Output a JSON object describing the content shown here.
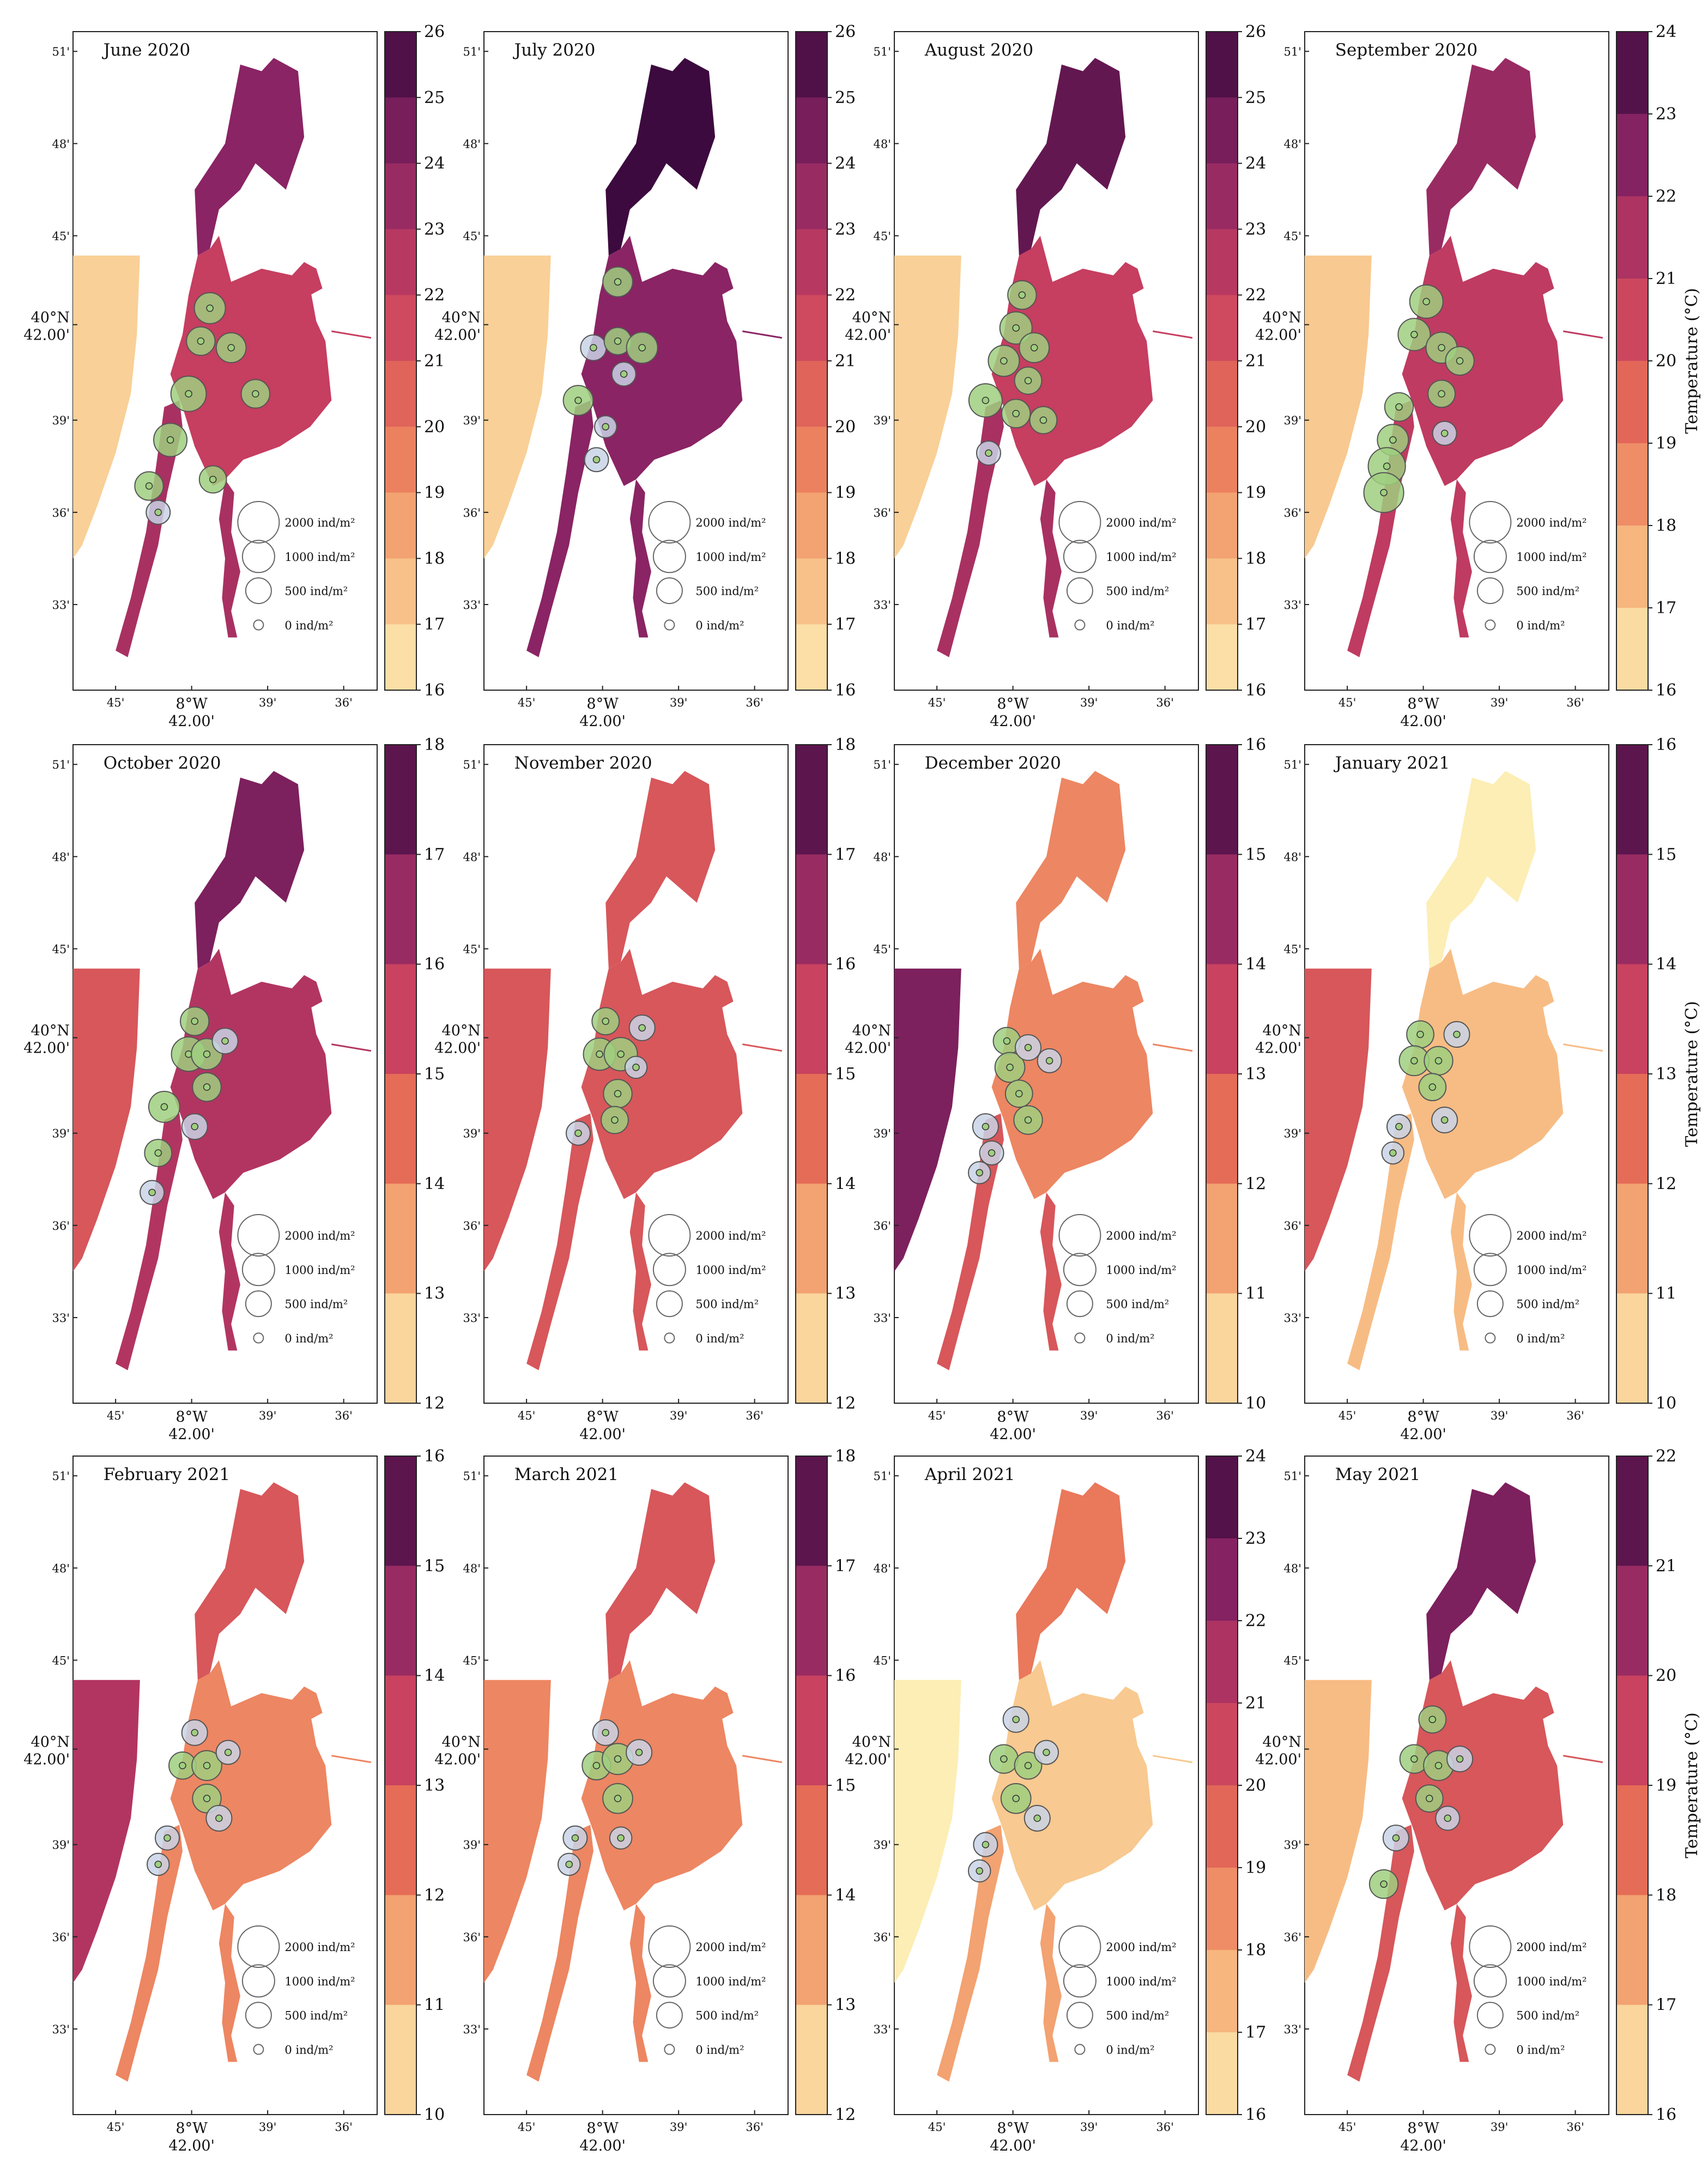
{
  "figure": {
    "colorbar_label": "Temperature (°C)",
    "axes": {
      "lat_ticks": [
        "51'",
        "48'",
        "45'",
        "42.00'",
        "39'",
        "36'",
        "33'"
      ],
      "lat_major_prefix": "40°N",
      "lon_ticks": [
        "45'",
        "8°W",
        "39'",
        "36'"
      ],
      "lon_major_sub": "42.00'"
    },
    "legend": [
      "2000 ind/m²",
      "1000 ind/m²",
      "500 ind/m²",
      "0 ind/m²"
    ],
    "legend_values": [
      2000,
      1000,
      500,
      0
    ],
    "land_color": "#ffffff",
    "sample_fill_colors": {
      "low": "#c9d3e6",
      "high": "#9fcf7f"
    }
  },
  "panels": [
    {
      "title": "June 2020",
      "colorbar": {
        "min": 16,
        "max": 26,
        "ticks": [
          26,
          25,
          24,
          23,
          22,
          21,
          20,
          19,
          18,
          17,
          16
        ]
      },
      "temp": {
        "north": 24,
        "lagoon": 22,
        "channel": 23,
        "sea": 17
      },
      "samples": [
        [
          0.45,
          0.42,
          900
        ],
        [
          0.42,
          0.47,
          700
        ],
        [
          0.38,
          0.55,
          1300
        ],
        [
          0.32,
          0.62,
          1100
        ],
        [
          0.52,
          0.48,
          800
        ],
        [
          0.6,
          0.55,
          700
        ],
        [
          0.46,
          0.68,
          600
        ],
        [
          0.25,
          0.69,
          700
        ],
        [
          0.28,
          0.73,
          400
        ]
      ]
    },
    {
      "title": "July 2020",
      "colorbar": {
        "min": 16,
        "max": 26,
        "ticks": [
          26,
          25,
          24,
          23,
          22,
          21,
          20,
          19,
          18,
          17,
          16
        ]
      },
      "temp": {
        "north": 26,
        "lagoon": 24,
        "channel": 24,
        "sea": 17
      },
      "samples": [
        [
          0.44,
          0.38,
          800
        ],
        [
          0.36,
          0.48,
          500
        ],
        [
          0.44,
          0.47,
          600
        ],
        [
          0.52,
          0.48,
          900
        ],
        [
          0.46,
          0.52,
          400
        ],
        [
          0.31,
          0.56,
          800
        ],
        [
          0.4,
          0.6,
          300
        ],
        [
          0.37,
          0.65,
          400
        ]
      ]
    },
    {
      "title": "August 2020",
      "colorbar": {
        "min": 16,
        "max": 26,
        "ticks": [
          26,
          25,
          24,
          23,
          22,
          21,
          20,
          19,
          18,
          17,
          16
        ]
      },
      "temp": {
        "north": 25,
        "lagoon": 22,
        "channel": 23,
        "sea": 17
      },
      "samples": [
        [
          0.42,
          0.4,
          700
        ],
        [
          0.4,
          0.45,
          1000
        ],
        [
          0.36,
          0.5,
          900
        ],
        [
          0.46,
          0.48,
          800
        ],
        [
          0.44,
          0.53,
          600
        ],
        [
          0.3,
          0.56,
          1100
        ],
        [
          0.4,
          0.58,
          700
        ],
        [
          0.49,
          0.59,
          600
        ],
        [
          0.31,
          0.64,
          400
        ]
      ]
    },
    {
      "title": "September 2020",
      "colorbar": {
        "min": 16,
        "max": 24,
        "ticks": [
          24,
          23,
          22,
          21,
          20,
          19,
          18,
          17,
          16
        ]
      },
      "temp": {
        "north": 22,
        "lagoon": 21,
        "channel": 21,
        "sea": 17
      },
      "samples": [
        [
          0.4,
          0.41,
          1100
        ],
        [
          0.36,
          0.46,
          1000
        ],
        [
          0.45,
          0.48,
          900
        ],
        [
          0.51,
          0.5,
          700
        ],
        [
          0.45,
          0.55,
          600
        ],
        [
          0.31,
          0.57,
          700
        ],
        [
          0.29,
          0.62,
          900
        ],
        [
          0.27,
          0.66,
          1500
        ],
        [
          0.26,
          0.7,
          1800
        ],
        [
          0.46,
          0.61,
          400
        ]
      ]
    },
    {
      "title": "October 2020",
      "colorbar": {
        "min": 12,
        "max": 18,
        "ticks": [
          18,
          17,
          16,
          15,
          14,
          13,
          12
        ]
      },
      "temp": {
        "north": 17,
        "lagoon": 16,
        "channel": 16,
        "sea": 15
      },
      "samples": [
        [
          0.4,
          0.42,
          700
        ],
        [
          0.38,
          0.47,
          1200
        ],
        [
          0.44,
          0.47,
          900
        ],
        [
          0.5,
          0.45,
          500
        ],
        [
          0.44,
          0.52,
          700
        ],
        [
          0.3,
          0.55,
          900
        ],
        [
          0.4,
          0.58,
          500
        ],
        [
          0.28,
          0.62,
          600
        ],
        [
          0.26,
          0.68,
          400
        ]
      ]
    },
    {
      "title": "November 2020",
      "colorbar": {
        "min": 12,
        "max": 18,
        "ticks": [
          18,
          17,
          16,
          15,
          14,
          13,
          12
        ]
      },
      "temp": {
        "north": 15,
        "lagoon": 15,
        "channel": 15,
        "sea": 15
      },
      "samples": [
        [
          0.4,
          0.42,
          600
        ],
        [
          0.38,
          0.47,
          1000
        ],
        [
          0.45,
          0.47,
          1100
        ],
        [
          0.52,
          0.43,
          500
        ],
        [
          0.44,
          0.53,
          700
        ],
        [
          0.5,
          0.49,
          300
        ],
        [
          0.31,
          0.59,
          400
        ],
        [
          0.43,
          0.57,
          600
        ]
      ]
    },
    {
      "title": "December 2020",
      "colorbar": {
        "min": 10,
        "max": 16,
        "ticks": [
          16,
          15,
          14,
          13,
          12,
          11,
          10
        ]
      },
      "temp": {
        "north": 12,
        "lagoon": 12,
        "channel": 13,
        "sea": 15
      },
      "samples": [
        [
          0.37,
          0.45,
          600
        ],
        [
          0.38,
          0.49,
          800
        ],
        [
          0.44,
          0.46,
          500
        ],
        [
          0.41,
          0.53,
          600
        ],
        [
          0.44,
          0.57,
          700
        ],
        [
          0.3,
          0.58,
          500
        ],
        [
          0.51,
          0.48,
          400
        ],
        [
          0.32,
          0.62,
          400
        ],
        [
          0.28,
          0.65,
          300
        ]
      ]
    },
    {
      "title": "January 2021",
      "colorbar": {
        "min": 10,
        "max": 16,
        "ticks": [
          16,
          15,
          14,
          13,
          12,
          11,
          10
        ]
      },
      "temp": {
        "north": 10,
        "lagoon": 11,
        "channel": 11,
        "sea": 13
      },
      "samples": [
        [
          0.38,
          0.44,
          600
        ],
        [
          0.36,
          0.48,
          800
        ],
        [
          0.44,
          0.48,
          700
        ],
        [
          0.5,
          0.44,
          500
        ],
        [
          0.42,
          0.52,
          600
        ],
        [
          0.46,
          0.57,
          500
        ],
        [
          0.31,
          0.58,
          400
        ],
        [
          0.29,
          0.62,
          300
        ]
      ]
    },
    {
      "title": "February 2021",
      "colorbar": {
        "min": 10,
        "max": 16,
        "ticks": [
          16,
          15,
          14,
          13,
          12,
          11,
          10
        ]
      },
      "temp": {
        "north": 13,
        "lagoon": 12,
        "channel": 12,
        "sea": 14
      },
      "samples": [
        [
          0.4,
          0.42,
          500
        ],
        [
          0.36,
          0.47,
          600
        ],
        [
          0.44,
          0.47,
          800
        ],
        [
          0.51,
          0.45,
          400
        ],
        [
          0.44,
          0.52,
          700
        ],
        [
          0.48,
          0.55,
          500
        ],
        [
          0.31,
          0.58,
          400
        ],
        [
          0.28,
          0.62,
          300
        ]
      ]
    },
    {
      "title": "March 2021",
      "colorbar": {
        "min": 12,
        "max": 18,
        "ticks": [
          18,
          17,
          16,
          15,
          14,
          13,
          12
        ]
      },
      "temp": {
        "north": 15,
        "lagoon": 14,
        "channel": 14,
        "sea": 14
      },
      "samples": [
        [
          0.4,
          0.42,
          500
        ],
        [
          0.37,
          0.47,
          700
        ],
        [
          0.44,
          0.46,
          900
        ],
        [
          0.51,
          0.45,
          500
        ],
        [
          0.44,
          0.52,
          800
        ],
        [
          0.3,
          0.58,
          400
        ],
        [
          0.45,
          0.58,
          300
        ],
        [
          0.28,
          0.62,
          300
        ]
      ]
    },
    {
      "title": "April 2021",
      "colorbar": {
        "min": 16,
        "max": 24,
        "ticks": [
          24,
          23,
          22,
          21,
          20,
          19,
          18,
          17,
          16
        ]
      },
      "temp": {
        "north": 19,
        "lagoon": 17,
        "channel": 18,
        "sea": 16
      },
      "samples": [
        [
          0.4,
          0.4,
          500
        ],
        [
          0.36,
          0.46,
          700
        ],
        [
          0.44,
          0.47,
          600
        ],
        [
          0.5,
          0.45,
          400
        ],
        [
          0.4,
          0.52,
          800
        ],
        [
          0.47,
          0.55,
          500
        ],
        [
          0.3,
          0.59,
          400
        ],
        [
          0.28,
          0.63,
          300
        ]
      ]
    },
    {
      "title": "May 2021",
      "colorbar": {
        "min": 16,
        "max": 22,
        "ticks": [
          22,
          21,
          20,
          19,
          18,
          17,
          16
        ]
      },
      "temp": {
        "north": 21,
        "lagoon": 19,
        "channel": 19,
        "sea": 17
      },
      "samples": [
        [
          0.42,
          0.4,
          600
        ],
        [
          0.36,
          0.46,
          700
        ],
        [
          0.44,
          0.47,
          800
        ],
        [
          0.51,
          0.46,
          500
        ],
        [
          0.41,
          0.52,
          600
        ],
        [
          0.47,
          0.55,
          400
        ],
        [
          0.3,
          0.58,
          500
        ],
        [
          0.26,
          0.65,
          700
        ]
      ]
    }
  ]
}
